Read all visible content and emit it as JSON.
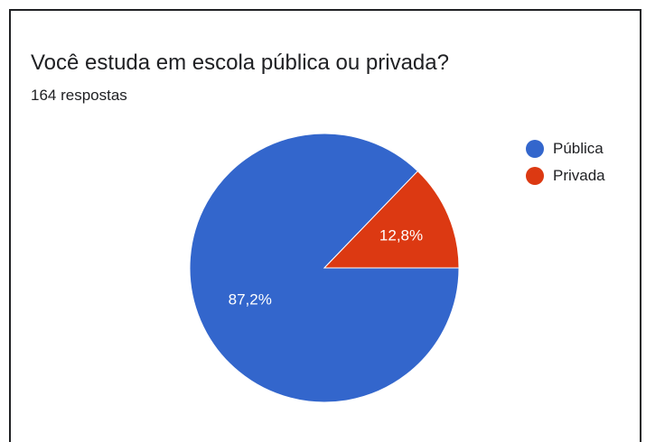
{
  "header": {
    "title": "Você estuda em escola pública ou privada?",
    "subtitle": "164 respostas"
  },
  "chart_data": {
    "type": "pie",
    "categories": [
      "Pública",
      "Privada"
    ],
    "values": [
      87.2,
      12.8
    ],
    "data_labels": [
      "87,2%",
      "12,8%"
    ],
    "colors": [
      "#3366cc",
      "#dc3912"
    ],
    "legend_position": "right"
  }
}
